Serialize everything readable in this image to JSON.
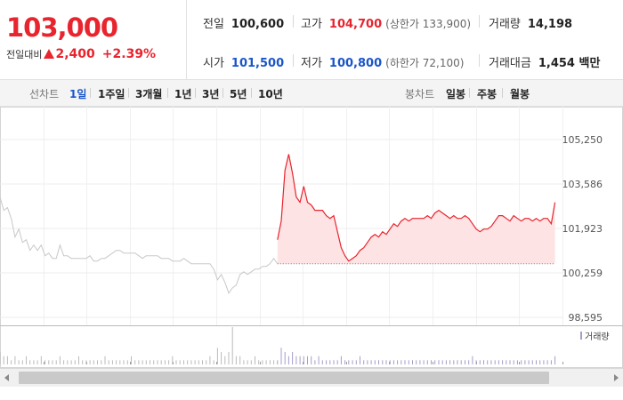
{
  "quote": {
    "price": "103,000",
    "change_label": "전일대비",
    "change": "2,400",
    "rate": "+2.39%",
    "prev_close_label": "전일",
    "prev_close": "100,600",
    "high_label": "고가",
    "high": "104,700",
    "upper_limit": "(상한가 133,900)",
    "volume_label": "거래량",
    "volume": "14,198",
    "open_label": "시가",
    "open": "101,500",
    "low_label": "저가",
    "low": "100,800",
    "lower_limit": "(하한가 72,100)",
    "amount_label": "거래대금",
    "amount": "1,454 백만"
  },
  "tabs": {
    "line_label": "선차트",
    "line_items": [
      "1일",
      "1주일",
      "3개월",
      "1년",
      "3년",
      "5년",
      "10년"
    ],
    "line_active": "1일",
    "candle_label": "봉차트",
    "candle_items": [
      "일봉",
      "주봉",
      "월봉"
    ]
  },
  "colors": {
    "up": "#e8242e",
    "down": "#1a55c9",
    "prev_day_line": "#c8c8c8",
    "area_fill": "#fde3e3",
    "volume_bar": "#a89cc8"
  },
  "chart_data": {
    "type": "line",
    "ylim": [
      98595,
      105250
    ],
    "yticks": [
      "105,250",
      "103,586",
      "101,923",
      "100,259",
      "98,595"
    ],
    "x_range": [
      0,
      150
    ],
    "legend": "거래량",
    "legend_position": "top-right",
    "baseline": 100600,
    "series": [
      {
        "x": [
          0,
          1,
          2,
          3,
          4,
          5,
          6,
          7,
          8,
          9,
          10,
          11,
          12,
          13,
          14,
          15,
          16,
          17,
          18,
          19,
          20,
          21,
          22,
          23,
          24,
          25,
          26,
          27,
          28,
          29,
          30,
          31,
          32,
          33,
          34,
          35,
          36,
          37,
          38,
          39,
          40,
          41,
          42,
          43,
          44,
          45,
          46,
          47,
          48,
          49,
          50,
          51,
          52,
          53,
          54,
          55,
          56,
          57,
          58,
          59,
          60,
          61,
          62,
          63,
          64,
          65,
          66,
          67,
          68,
          69,
          70,
          71,
          72,
          73,
          74
        ],
        "values": [
          103100,
          102600,
          102700,
          102300,
          101600,
          101900,
          101400,
          101500,
          101100,
          101300,
          101100,
          101300,
          100900,
          101000,
          100800,
          100800,
          101300,
          100900,
          100900,
          100800,
          100800,
          100800,
          100800,
          100800,
          100900,
          100700,
          100700,
          100800,
          100800,
          100900,
          101000,
          101100,
          101100,
          101000,
          101000,
          101000,
          101000,
          100900,
          100800,
          100900,
          100900,
          100900,
          100900,
          100800,
          100800,
          100800,
          100700,
          100700,
          100700,
          100800,
          100700,
          100600,
          100600,
          100600,
          100600,
          100600,
          100600,
          100400,
          100000,
          100200,
          99900,
          99500,
          99700,
          99800,
          100200,
          100300,
          100200,
          100300,
          100400,
          100400,
          100500,
          100500,
          100600,
          100800,
          100600
        ]
      },
      {
        "x": [
          74,
          75,
          76,
          77,
          78,
          79,
          80,
          81,
          82,
          83,
          84,
          85,
          86,
          87,
          88,
          89,
          90,
          91,
          92,
          93,
          94,
          95,
          96,
          97,
          98,
          99,
          100,
          101,
          102,
          103,
          104,
          105,
          106,
          107,
          108,
          109,
          110,
          111,
          112,
          113,
          114,
          115,
          116,
          117,
          118,
          119,
          120,
          121,
          122,
          123,
          124,
          125,
          126,
          127,
          128,
          129,
          130,
          131,
          132,
          133,
          134,
          135,
          136,
          137,
          138,
          139,
          140,
          141,
          142,
          143,
          144,
          145,
          146,
          147,
          148
        ],
        "values": [
          101500,
          102200,
          104100,
          104700,
          104000,
          103100,
          102900,
          103500,
          102900,
          102800,
          102600,
          102600,
          102600,
          102400,
          102300,
          102400,
          101800,
          101200,
          100900,
          100700,
          100800,
          100900,
          101100,
          101200,
          101400,
          101600,
          101700,
          101600,
          101800,
          101700,
          101900,
          102100,
          102000,
          102200,
          102300,
          102200,
          102300,
          102300,
          102300,
          102300,
          102400,
          102300,
          102500,
          102600,
          102500,
          102400,
          102300,
          102400,
          102300,
          102300,
          102400,
          102300,
          102100,
          101900,
          101800,
          101900,
          101900,
          102000,
          102200,
          102400,
          102400,
          102300,
          102200,
          102400,
          102300,
          102200,
          102300,
          102300,
          102200,
          102300,
          102200,
          102300,
          102300,
          102100,
          102900
        ]
      }
    ],
    "volume": [
      3,
      2,
      2,
      1,
      2,
      1,
      1,
      2,
      1,
      1,
      1,
      2,
      1,
      1,
      1,
      1,
      2,
      1,
      1,
      1,
      1,
      2,
      1,
      1,
      1,
      1,
      1,
      1,
      2,
      1,
      1,
      1,
      1,
      1,
      1,
      2,
      1,
      1,
      1,
      1,
      1,
      1,
      1,
      1,
      1,
      1,
      2,
      1,
      1,
      1,
      1,
      1,
      1,
      1,
      1,
      1,
      2,
      1,
      4,
      3,
      2,
      3,
      9,
      2,
      2,
      1,
      1,
      1,
      2,
      1,
      1,
      1,
      1,
      1,
      1,
      4,
      3,
      2,
      3,
      2,
      2,
      2,
      2,
      2,
      1,
      2,
      1,
      1,
      1,
      1,
      1,
      2,
      1,
      1,
      1,
      1,
      2,
      1,
      1,
      1,
      1,
      1,
      1,
      1,
      1,
      1,
      1,
      1,
      1,
      1,
      1,
      1,
      1,
      1,
      1,
      1,
      1,
      1,
      1,
      1,
      1,
      1,
      1,
      1,
      1,
      1,
      2,
      1,
      1,
      1,
      1,
      1,
      1,
      1,
      1,
      1,
      1,
      1,
      1,
      1,
      1,
      1,
      1,
      1,
      1,
      1,
      1,
      1,
      2
    ]
  }
}
